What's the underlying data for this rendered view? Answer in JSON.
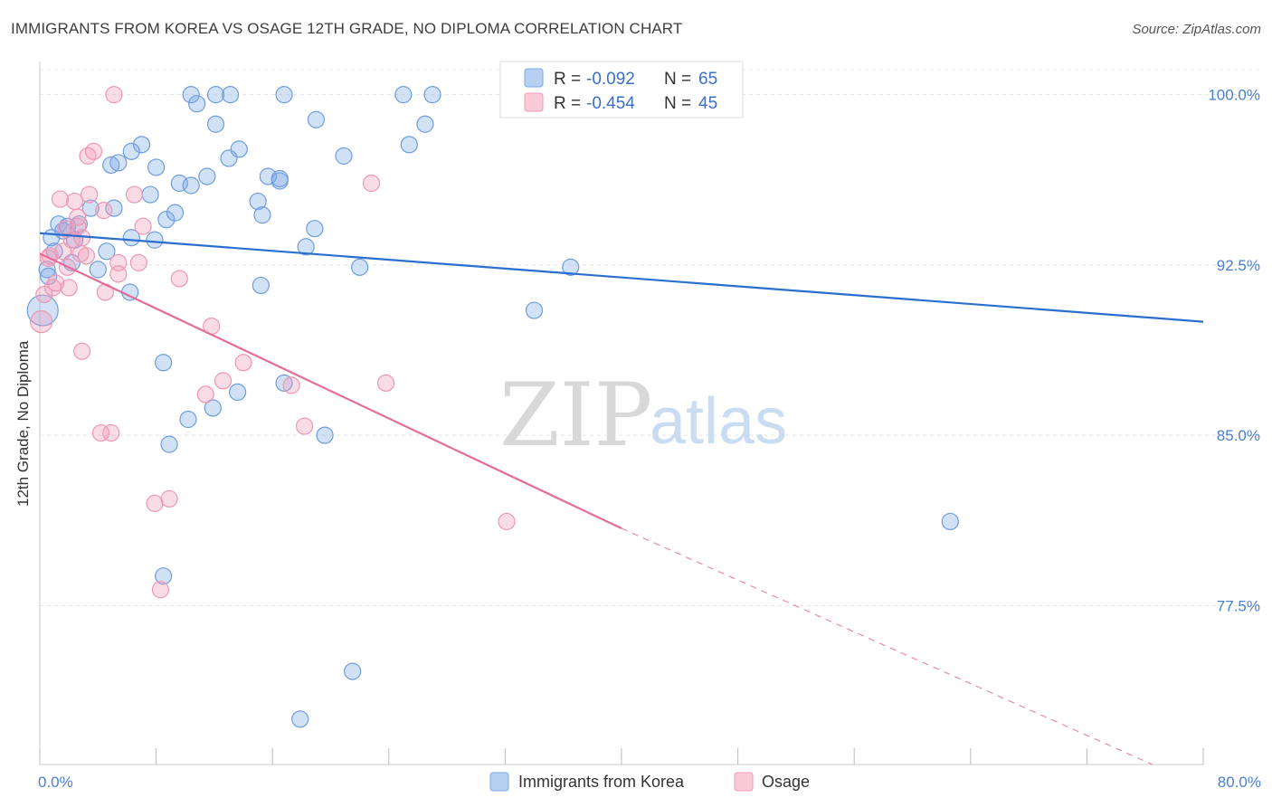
{
  "title": "IMMIGRANTS FROM KOREA VS OSAGE 12TH GRADE, NO DIPLOMA CORRELATION CHART",
  "source": "Source: ZipAtlas.com",
  "watermark": {
    "part1": "ZIP",
    "part2": "atlas"
  },
  "colors": {
    "korea": "#7aaae6",
    "osage": "#f29ab6",
    "korea_line": "#2a6fcf",
    "osage_line": "#e56b98",
    "tick_text": "#4a7fd0"
  },
  "legend": {
    "row1": {
      "r_label": "R = ",
      "r_value": "-0.092",
      "n_label": "N = ",
      "n_value": "65"
    },
    "row2": {
      "r_label": "R = ",
      "r_value": "-0.454",
      "n_label": "N = ",
      "n_value": "45"
    }
  },
  "bottom_legend": {
    "series1": "Immigrants from Korea",
    "series2": "Osage"
  },
  "chart_data": {
    "type": "scatter",
    "title": "IMMIGRANTS FROM KOREA VS OSAGE 12TH GRADE, NO DIPLOMA CORRELATION CHART",
    "xlabel": "",
    "ylabel": "12th Grade, No Diploma",
    "xlim": [
      0,
      80
    ],
    "ylim": [
      70.5,
      101.3
    ],
    "x_tick_labels": [
      "0.0%",
      "80.0%"
    ],
    "y_ticks": [
      77.5,
      85.0,
      92.5,
      100.0
    ],
    "y_tick_labels": [
      "77.5%",
      "85.0%",
      "92.5%",
      "100.0%"
    ],
    "grid": true,
    "legend_position": "top-center",
    "series": [
      {
        "name": "Immigrants from Korea",
        "r": -0.092,
        "n": 65,
        "trend": {
          "x": [
            0.0,
            80.0
          ],
          "y": [
            93.9,
            90.0
          ]
        },
        "points": [
          [
            0.2,
            90.5
          ],
          [
            0.5,
            92.3
          ],
          [
            0.6,
            92.0
          ],
          [
            0.8,
            93.7
          ],
          [
            1.0,
            93.1
          ],
          [
            1.3,
            94.3
          ],
          [
            1.6,
            94.0
          ],
          [
            1.9,
            94.2
          ],
          [
            2.2,
            92.6
          ],
          [
            2.4,
            93.6
          ],
          [
            2.7,
            94.3
          ],
          [
            3.5,
            95.0
          ],
          [
            4.0,
            92.3
          ],
          [
            4.6,
            93.1
          ],
          [
            4.9,
            96.9
          ],
          [
            5.4,
            97.0
          ],
          [
            5.1,
            95.0
          ],
          [
            6.2,
            91.3
          ],
          [
            6.3,
            97.5
          ],
          [
            7.0,
            97.8
          ],
          [
            7.6,
            95.6
          ],
          [
            7.9,
            93.6
          ],
          [
            8.0,
            96.8
          ],
          [
            8.5,
            88.2
          ],
          [
            8.7,
            94.5
          ],
          [
            8.9,
            84.6
          ],
          [
            9.3,
            94.8
          ],
          [
            9.6,
            96.1
          ],
          [
            10.2,
            85.7
          ],
          [
            10.4,
            96.0
          ],
          [
            11.5,
            96.4
          ],
          [
            11.9,
            86.2
          ],
          [
            12.1,
            98.7
          ],
          [
            13.0,
            97.2
          ],
          [
            13.6,
            86.9
          ],
          [
            13.7,
            97.6
          ],
          [
            15.0,
            95.3
          ],
          [
            15.3,
            94.7
          ],
          [
            15.2,
            91.6
          ],
          [
            15.7,
            96.4
          ],
          [
            16.5,
            96.2
          ],
          [
            16.5,
            96.3
          ],
          [
            16.8,
            87.3
          ],
          [
            17.9,
            72.5
          ],
          [
            18.3,
            93.3
          ],
          [
            18.9,
            94.1
          ],
          [
            19.0,
            98.9
          ],
          [
            19.6,
            85.0
          ],
          [
            20.9,
            97.3
          ],
          [
            21.5,
            74.6
          ],
          [
            22.0,
            92.4
          ],
          [
            25.4,
            97.8
          ],
          [
            26.5,
            98.7
          ],
          [
            34.0,
            90.5
          ],
          [
            36.5,
            92.4
          ],
          [
            62.6,
            81.2
          ],
          [
            10.4,
            100.0
          ],
          [
            13.1,
            100.0
          ],
          [
            16.8,
            100.0
          ],
          [
            25.0,
            100.0
          ],
          [
            27.0,
            100.0
          ],
          [
            8.5,
            78.8
          ],
          [
            10.8,
            99.6
          ],
          [
            12.1,
            100.0
          ],
          [
            6.3,
            93.7
          ]
        ]
      },
      {
        "name": "Osage",
        "r": -0.454,
        "n": 45,
        "trend": {
          "x": [
            0.0,
            40.0
          ],
          "y": [
            93.0,
            80.9
          ]
        },
        "trend_dashed": {
          "x": [
            40.0,
            76.5
          ],
          "y": [
            80.9,
            70.5
          ]
        },
        "points": [
          [
            0.1,
            90.0
          ],
          [
            0.3,
            91.2
          ],
          [
            0.6,
            92.8
          ],
          [
            0.9,
            91.5
          ],
          [
            1.1,
            91.7
          ],
          [
            1.4,
            95.4
          ],
          [
            1.6,
            93.1
          ],
          [
            1.8,
            94.1
          ],
          [
            2.0,
            91.5
          ],
          [
            2.2,
            93.6
          ],
          [
            2.4,
            95.3
          ],
          [
            2.6,
            94.2
          ],
          [
            2.9,
            93.7
          ],
          [
            3.2,
            92.9
          ],
          [
            3.4,
            95.6
          ],
          [
            3.7,
            97.5
          ],
          [
            4.2,
            85.1
          ],
          [
            4.5,
            91.3
          ],
          [
            4.9,
            85.1
          ],
          [
            5.4,
            92.6
          ],
          [
            5.4,
            92.1
          ],
          [
            6.5,
            95.6
          ],
          [
            7.1,
            94.2
          ],
          [
            7.9,
            82.0
          ],
          [
            8.3,
            78.2
          ],
          [
            8.9,
            82.2
          ],
          [
            9.6,
            91.9
          ],
          [
            11.4,
            86.8
          ],
          [
            11.8,
            89.8
          ],
          [
            12.6,
            87.4
          ],
          [
            14.0,
            88.2
          ],
          [
            17.3,
            87.2
          ],
          [
            18.2,
            85.4
          ],
          [
            22.8,
            96.1
          ],
          [
            23.8,
            87.3
          ],
          [
            32.1,
            81.2
          ],
          [
            5.1,
            100.0
          ],
          [
            3.3,
            97.3
          ],
          [
            2.6,
            94.6
          ],
          [
            4.4,
            94.9
          ],
          [
            1.9,
            92.4
          ],
          [
            2.8,
            93.0
          ],
          [
            0.7,
            92.9
          ],
          [
            6.8,
            92.6
          ],
          [
            2.9,
            88.7
          ]
        ]
      }
    ]
  }
}
